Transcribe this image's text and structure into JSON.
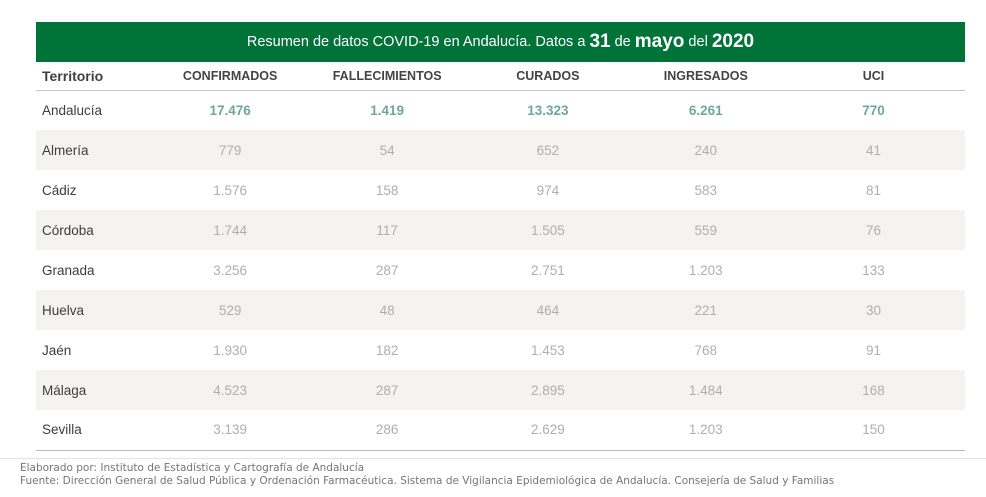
{
  "header": {
    "title_prefix": "Resumen de datos COVID-19 en Andalucía. Datos a ",
    "day": "31",
    "sep_de": " de ",
    "month": "mayo",
    "sep_del": " del ",
    "year": "2020"
  },
  "chart_data": {
    "type": "table",
    "title": "Resumen de datos COVID-19 en Andalucía. Datos a 31 de mayo del 2020",
    "columns": [
      "Territorio",
      "CONFIRMADOS",
      "FALLECIMIENTOS",
      "CURADOS",
      "INGRESADOS",
      "UCI"
    ],
    "rows": [
      {
        "territory": "Andalucía",
        "values": [
          "17.476",
          "1.419",
          "13.323",
          "6.261",
          "770"
        ],
        "highlight": true
      },
      {
        "territory": "Almería",
        "values": [
          "779",
          "54",
          "652",
          "240",
          "41"
        ],
        "highlight": false
      },
      {
        "territory": "Cádiz",
        "values": [
          "1.576",
          "158",
          "974",
          "583",
          "81"
        ],
        "highlight": false
      },
      {
        "territory": "Córdoba",
        "values": [
          "1.744",
          "117",
          "1.505",
          "559",
          "76"
        ],
        "highlight": false
      },
      {
        "territory": "Granada",
        "values": [
          "3.256",
          "287",
          "2.751",
          "1.203",
          "133"
        ],
        "highlight": false
      },
      {
        "territory": "Huelva",
        "values": [
          "529",
          "48",
          "464",
          "221",
          "30"
        ],
        "highlight": false
      },
      {
        "territory": "Jaén",
        "values": [
          "1.930",
          "182",
          "1.453",
          "768",
          "91"
        ],
        "highlight": false
      },
      {
        "territory": "Málaga",
        "values": [
          "4.523",
          "287",
          "2.895",
          "1.484",
          "168"
        ],
        "highlight": false
      },
      {
        "territory": "Sevilla",
        "values": [
          "3.139",
          "286",
          "2.629",
          "1.203",
          "150"
        ],
        "highlight": false
      }
    ]
  },
  "footer": {
    "line1": "Elaborado por: Instituto de Estadística y Cartografía de Andalucía",
    "line2": "Fuente: Dirección General de Salud Pública y Ordenación Farmacéutica. Sistema de Vigilancia Epidemiológica de Andalucía. Consejería de Salud y Familias"
  },
  "colors": {
    "header_green": "#007339",
    "highlight_teal": "#6fa79b",
    "stripe_gray": "#f4f3f2",
    "value_gray": "#b1aeab"
  }
}
